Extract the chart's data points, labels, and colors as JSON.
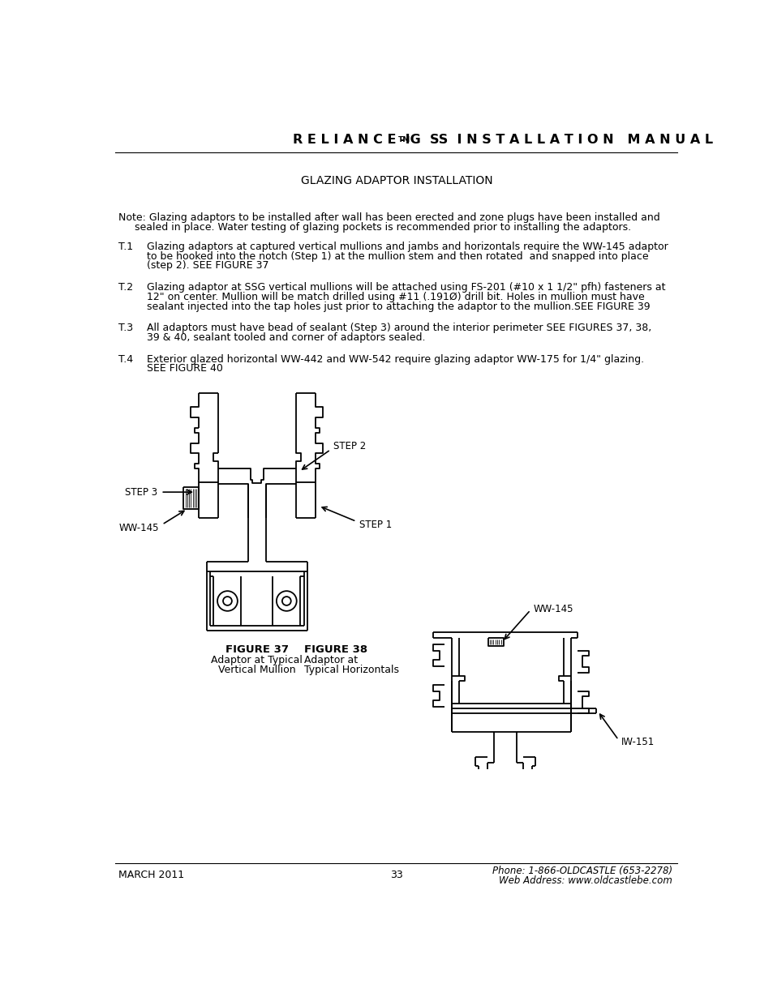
{
  "bg_color": "#ffffff",
  "text_color": "#000000",
  "subtitle": "GLAZING ADAPTOR INSTALLATION",
  "footer_left": "MARCH 2011",
  "footer_center": "33",
  "footer_right_line1": "Phone: 1-866-OLDCASTLE (653-2278)",
  "footer_right_line2": "Web Address: www.oldcastlebe.com",
  "fig37_label": "FIGURE 37",
  "fig37_sub1": "Adaptor at Typical",
  "fig37_sub2": "Vertical Mullion",
  "fig38_label": "FIGURE 38",
  "fig38_sub1": "Adaptor at",
  "fig38_sub2": "Typical Horizontals"
}
